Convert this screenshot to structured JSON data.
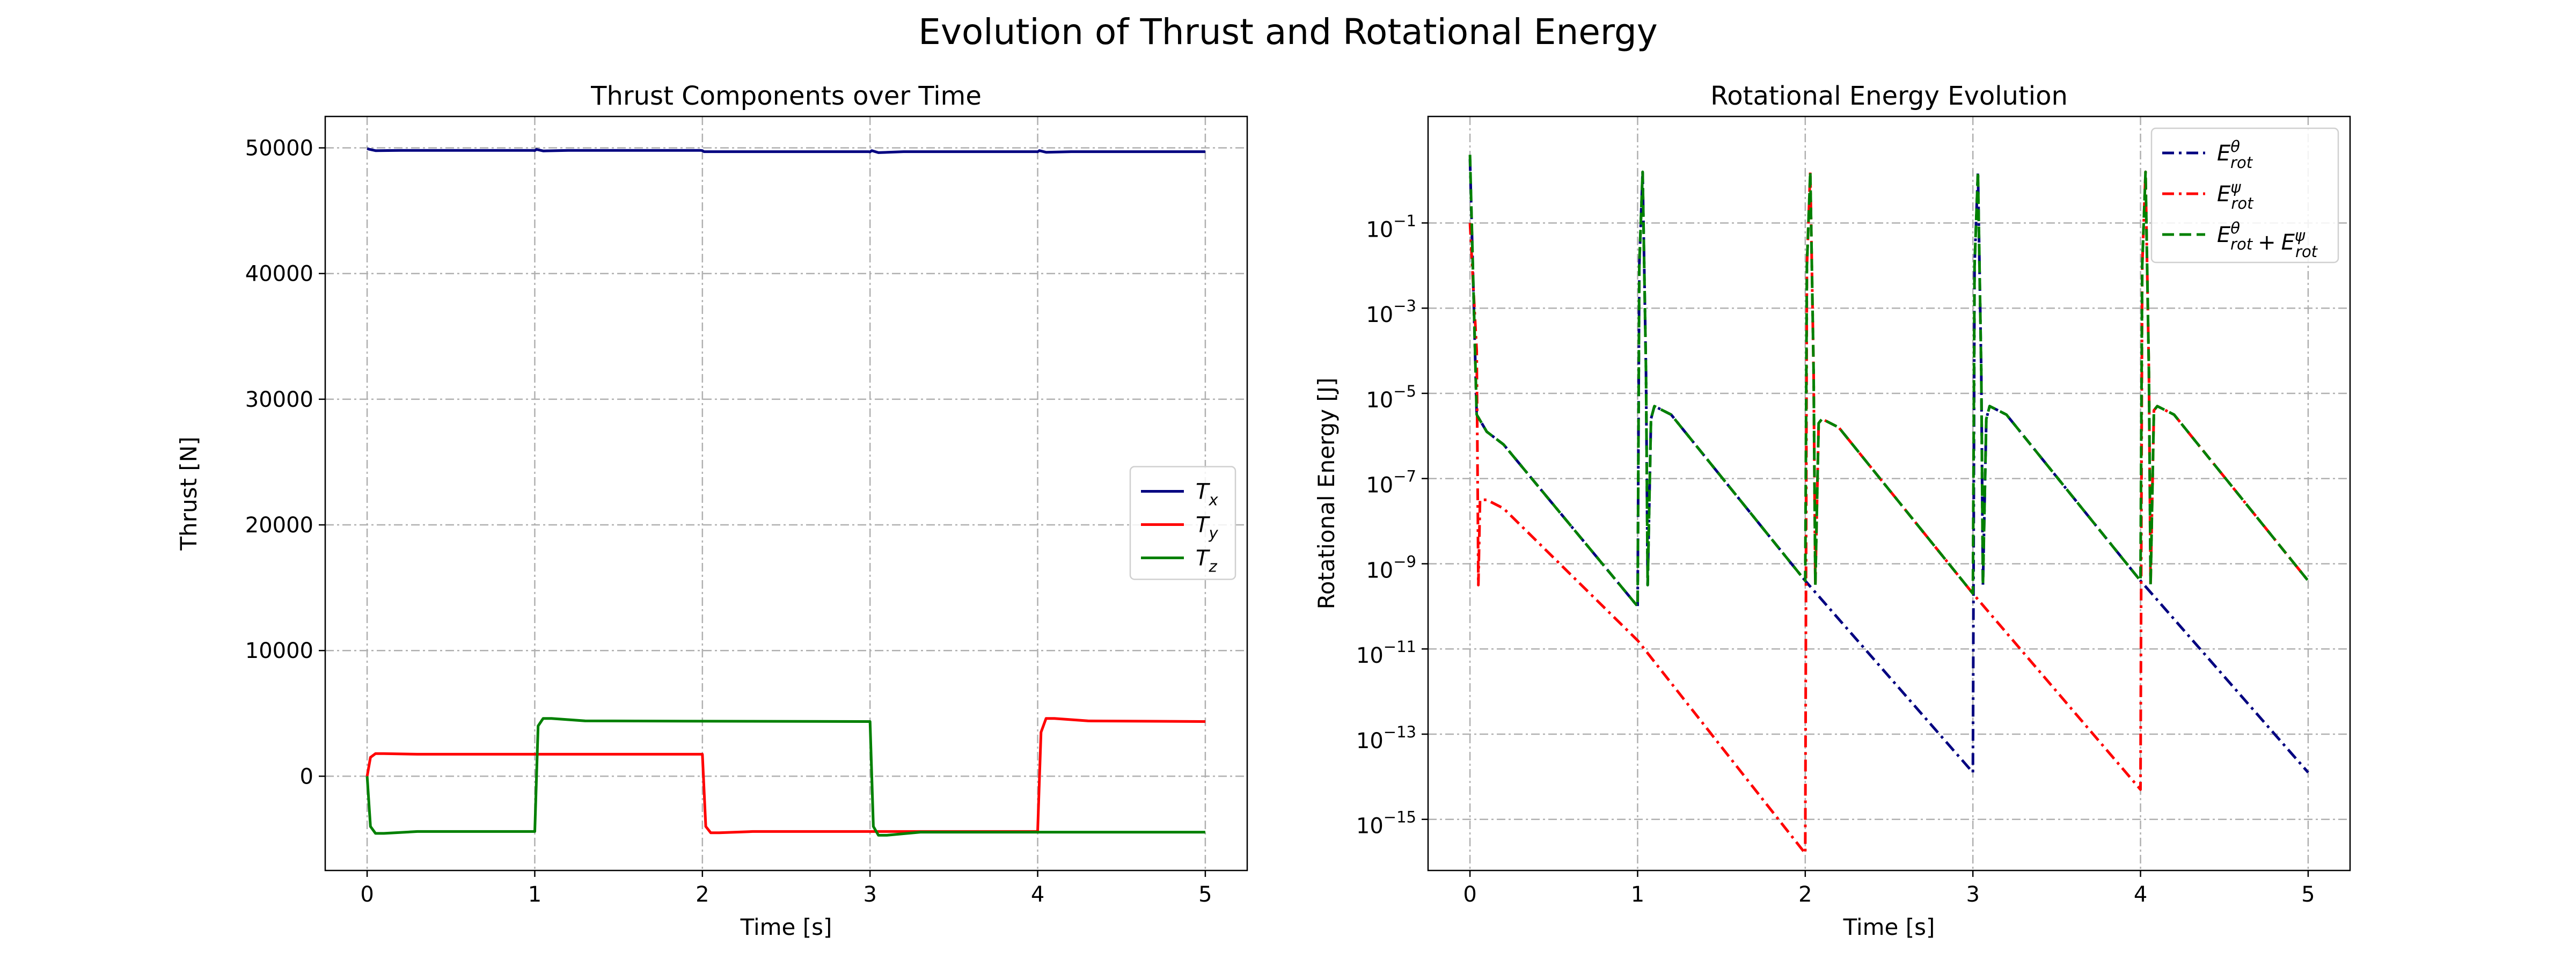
{
  "figure": {
    "title": "Evolution of Thrust and Rotational Energy"
  },
  "colors": {
    "navy": "#000080",
    "red": "#ff0000",
    "green": "#008000",
    "grid": "#b0b0b0"
  },
  "chart_data": [
    {
      "type": "line",
      "title": "Thrust Components over Time",
      "xlabel": "Time [s]",
      "ylabel": "Thrust [N]",
      "xlim": [
        -0.25,
        5.25
      ],
      "ylim": [
        -7500,
        52500
      ],
      "xticks": [
        0,
        1,
        2,
        3,
        4,
        5
      ],
      "xtick_labels": [
        "0",
        "1",
        "2",
        "3",
        "4",
        "5"
      ],
      "yticks": [
        0,
        10000,
        20000,
        30000,
        40000,
        50000
      ],
      "ytick_labels": [
        "0",
        "10000",
        "20000",
        "30000",
        "40000",
        "50000"
      ],
      "grid": true,
      "legend_position": "center-right",
      "series": [
        {
          "name": "T_x",
          "label_base": "T",
          "label_sub": "x",
          "label_sup": "",
          "color": "#000080",
          "dash": "solid",
          "x": [
            0,
            0.01,
            0.05,
            0.2,
            0.99,
            1.0,
            1.01,
            1.05,
            1.2,
            1.99,
            2.0,
            2.01,
            2.05,
            2.2,
            2.99,
            3.0,
            3.01,
            3.05,
            3.2,
            3.99,
            4.0,
            4.01,
            4.05,
            4.2,
            5.0
          ],
          "y": [
            49950,
            49900,
            49780,
            49800,
            49800,
            49790,
            49880,
            49760,
            49800,
            49800,
            49780,
            49700,
            49700,
            49700,
            49700,
            49680,
            49780,
            49620,
            49700,
            49700,
            49690,
            49780,
            49650,
            49700,
            49700
          ]
        },
        {
          "name": "T_y",
          "label_base": "T",
          "label_sub": "y",
          "label_sup": "",
          "color": "#ff0000",
          "dash": "solid",
          "x": [
            0,
            0.02,
            0.05,
            0.1,
            0.3,
            2.0,
            2.02,
            2.05,
            2.1,
            2.3,
            4.0,
            4.02,
            4.05,
            4.1,
            4.3,
            5.0
          ],
          "y": [
            0,
            1500,
            1800,
            1800,
            1750,
            1750,
            -4000,
            -4500,
            -4500,
            -4400,
            -4400,
            3500,
            4600,
            4600,
            4400,
            4350
          ]
        },
        {
          "name": "T_z",
          "label_base": "T",
          "label_sub": "z",
          "label_sup": "",
          "color": "#008000",
          "dash": "solid",
          "x": [
            0,
            0.02,
            0.05,
            0.1,
            0.3,
            1.0,
            1.02,
            1.05,
            1.1,
            1.3,
            3.0,
            3.02,
            3.05,
            3.1,
            3.3,
            5.0
          ],
          "y": [
            0,
            -4000,
            -4550,
            -4550,
            -4400,
            -4400,
            4000,
            4600,
            4600,
            4400,
            4350,
            -4000,
            -4700,
            -4700,
            -4450,
            -4450
          ]
        }
      ]
    },
    {
      "type": "line",
      "title": "Rotational Energy Evolution",
      "xlabel": "Time [s]",
      "ylabel": "Rotational Energy [J]",
      "yscale": "log",
      "xlim": [
        -0.25,
        5.25
      ],
      "ylim_log10": [
        -16.2,
        1.5
      ],
      "xticks": [
        0,
        1,
        2,
        3,
        4,
        5
      ],
      "xtick_labels": [
        "0",
        "1",
        "2",
        "3",
        "4",
        "5"
      ],
      "yticks_log10": [
        -15,
        -13,
        -11,
        -9,
        -7,
        -5,
        -3,
        -1
      ],
      "ytick_labels": [
        "10",
        "10",
        "10",
        "10",
        "10",
        "10",
        "10",
        "10"
      ],
      "ytick_exponents": [
        "−15",
        "−13",
        "−11",
        "−9",
        "−7",
        "−5",
        "−3",
        "−1"
      ],
      "grid": true,
      "legend_position": "top-right",
      "series": [
        {
          "name": "E_rot^theta",
          "label_base": "E",
          "label_sub": "rot",
          "label_sup": "θ",
          "color": "#000080",
          "dash": "dashdot",
          "x": [
            0,
            0.04,
            0.1,
            0.2,
            1.0,
            1.01,
            1.03,
            1.05,
            1.06,
            1.08,
            1.1,
            1.2,
            2.0,
            3.0,
            3.01,
            3.03,
            3.05,
            3.06,
            3.08,
            3.1,
            3.2,
            4.0,
            5.0
          ],
          "log10y": [
            0.5,
            -5.5,
            -5.9,
            -6.2,
            -10.0,
            -2.0,
            0.2,
            -4.5,
            -9.5,
            -5.6,
            -5.3,
            -5.5,
            -9.4,
            -13.9,
            -2.0,
            0.2,
            -4.5,
            -9.5,
            -5.6,
            -5.3,
            -5.5,
            -9.4,
            -13.9
          ]
        },
        {
          "name": "E_rot^psi",
          "label_base": "E",
          "label_sub": "rot",
          "label_sup": "ψ",
          "color": "#ff0000",
          "dash": "dashdot",
          "x": [
            0,
            0.04,
            0.05,
            0.06,
            0.1,
            0.2,
            1.0,
            2.0,
            2.01,
            2.03,
            2.05,
            2.06,
            2.08,
            2.1,
            2.2,
            3.0,
            4.0,
            4.01,
            4.03,
            4.05,
            4.06,
            4.08,
            4.1,
            4.2,
            5.0
          ],
          "log10y": [
            -1.0,
            -4.0,
            -9.5,
            -7.5,
            -7.5,
            -7.7,
            -10.8,
            -15.8,
            -2.0,
            0.2,
            -4.5,
            -9.5,
            -5.7,
            -5.6,
            -5.8,
            -9.7,
            -14.3,
            -2.0,
            0.2,
            -4.5,
            -9.5,
            -5.4,
            -5.3,
            -5.5,
            -9.4
          ]
        },
        {
          "name": "E_rot^theta + E_rot^psi",
          "label_base": "E",
          "label_sub": "rot",
          "label_sup": "θ",
          "label_tail": "+",
          "label_base2": "E",
          "label_sub2": "rot",
          "label_sup2": "ψ",
          "color": "#008000",
          "dash": "dashed",
          "x": [
            0,
            0.04,
            0.1,
            0.2,
            1.0,
            1.01,
            1.03,
            1.05,
            1.06,
            1.08,
            1.1,
            1.2,
            2.0,
            2.01,
            2.03,
            2.05,
            2.06,
            2.08,
            2.1,
            2.2,
            3.0,
            3.01,
            3.03,
            3.05,
            3.06,
            3.08,
            3.1,
            3.2,
            4.0,
            4.01,
            4.03,
            4.05,
            4.06,
            4.08,
            4.1,
            4.2,
            5.0
          ],
          "log10y": [
            0.6,
            -5.5,
            -5.9,
            -6.2,
            -10.0,
            -2.0,
            0.2,
            -4.5,
            -9.5,
            -5.6,
            -5.3,
            -5.5,
            -9.4,
            -2.0,
            0.2,
            -4.5,
            -9.5,
            -5.7,
            -5.6,
            -5.8,
            -9.7,
            -2.0,
            0.2,
            -4.5,
            -9.5,
            -5.6,
            -5.3,
            -5.5,
            -9.4,
            -2.0,
            0.2,
            -4.5,
            -9.5,
            -5.4,
            -5.3,
            -5.5,
            -9.4
          ]
        }
      ]
    }
  ]
}
